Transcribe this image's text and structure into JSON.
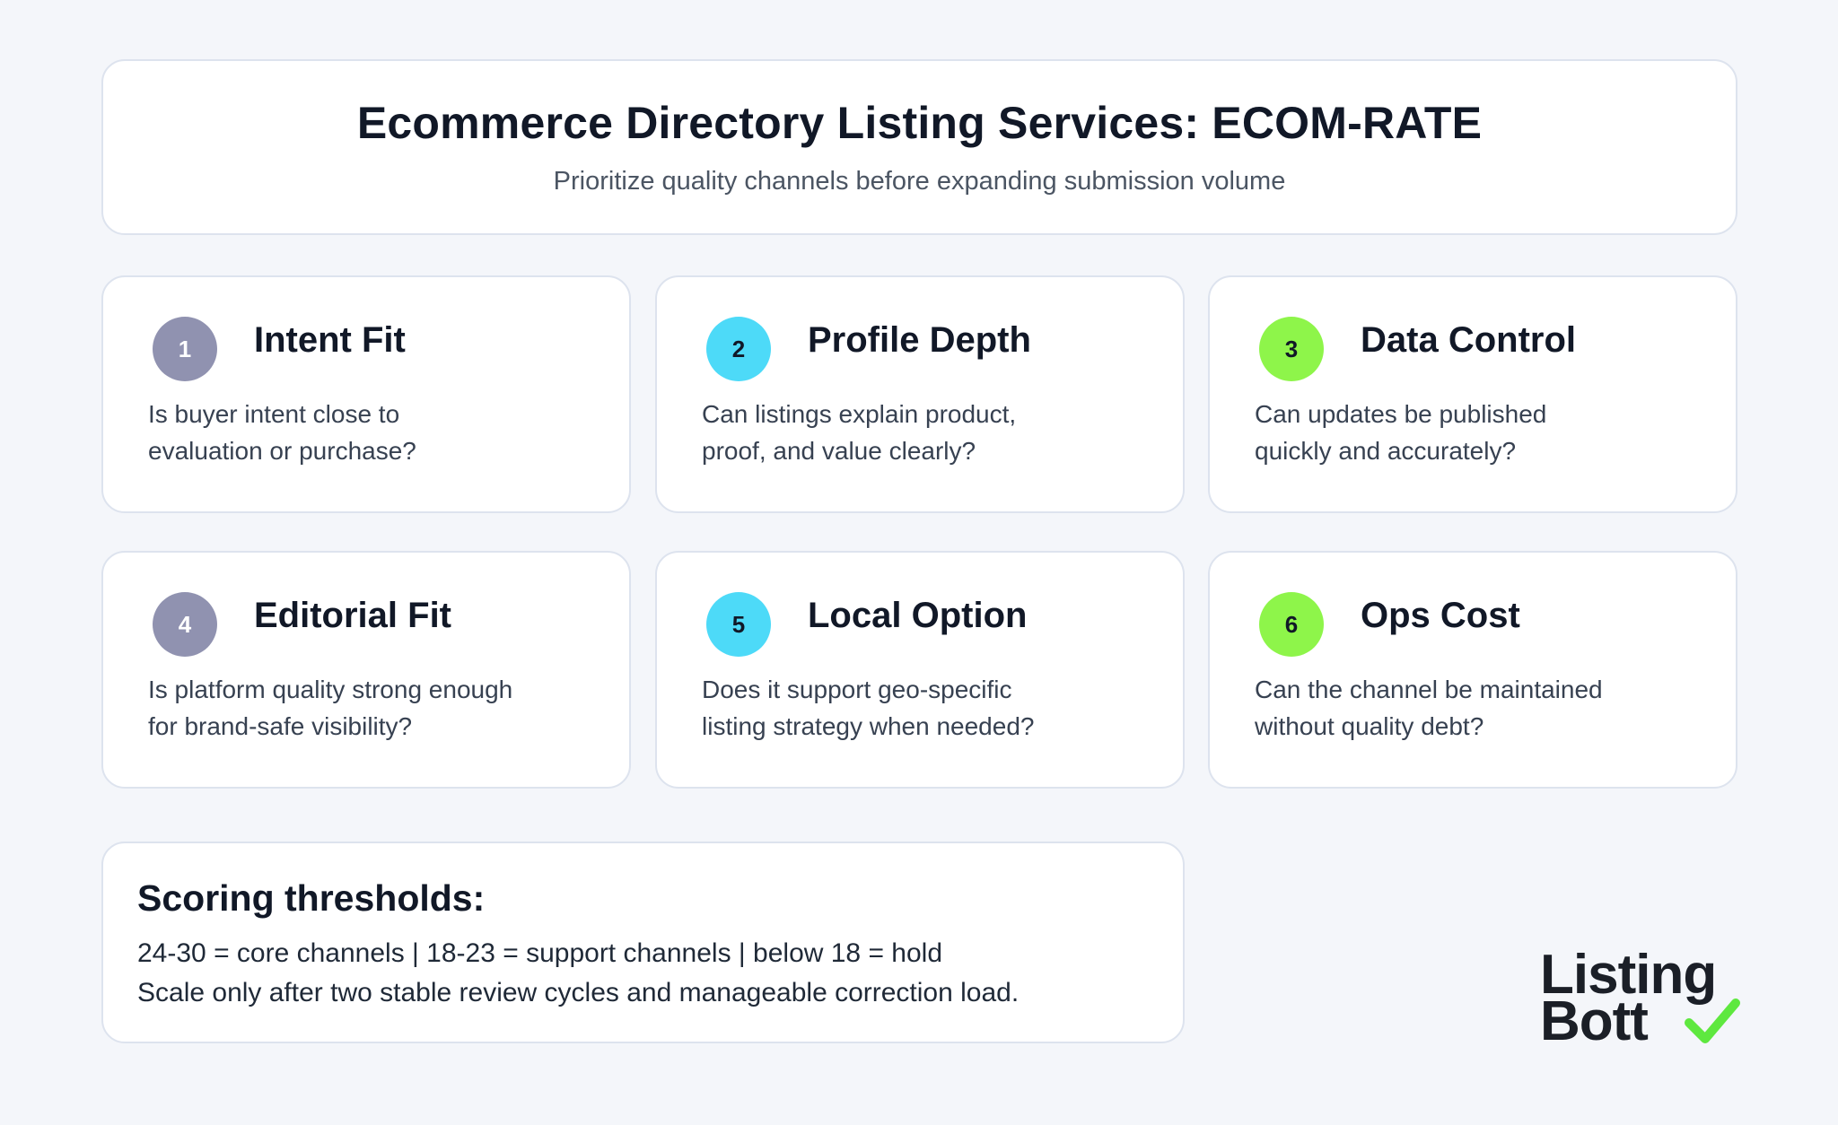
{
  "header": {
    "title": "Ecommerce Directory Listing Services: ECOM-RATE",
    "subtitle": "Prioritize quality channels before expanding submission volume"
  },
  "criteria": [
    {
      "number": "1",
      "title": "Intent Fit",
      "line1": "Is buyer intent close to",
      "line2": "evaluation or purchase?",
      "badge_color": "#9092b0",
      "number_color": "#ffffff"
    },
    {
      "number": "2",
      "title": "Profile Depth",
      "line1": "Can listings explain product,",
      "line2": "proof, and value clearly?",
      "badge_color": "#4ddaf8",
      "number_color": "#111827"
    },
    {
      "number": "3",
      "title": "Data Control",
      "line1": "Can updates be published",
      "line2": "quickly and accurately?",
      "badge_color": "#8ef54a",
      "number_color": "#111827"
    },
    {
      "number": "4",
      "title": "Editorial Fit",
      "line1": "Is platform quality strong enough",
      "line2": "for brand-safe visibility?",
      "badge_color": "#9092b0",
      "number_color": "#ffffff"
    },
    {
      "number": "5",
      "title": "Local Option",
      "line1": "Does it support geo-specific",
      "line2": "listing strategy when needed?",
      "badge_color": "#4ddaf8",
      "number_color": "#111827"
    },
    {
      "number": "6",
      "title": "Ops Cost",
      "line1": "Can the channel be maintained",
      "line2": "without quality debt?",
      "badge_color": "#8ef54a",
      "number_color": "#111827"
    }
  ],
  "scoring": {
    "title": "Scoring thresholds:",
    "line1": "24-30 = core channels | 18-23 = support channels | below 18 = hold",
    "line2": "Scale only after two stable review cycles and manageable correction load."
  },
  "logo": {
    "line1": "Listing",
    "line2": "Bott",
    "check_color": "#5ee83f"
  }
}
